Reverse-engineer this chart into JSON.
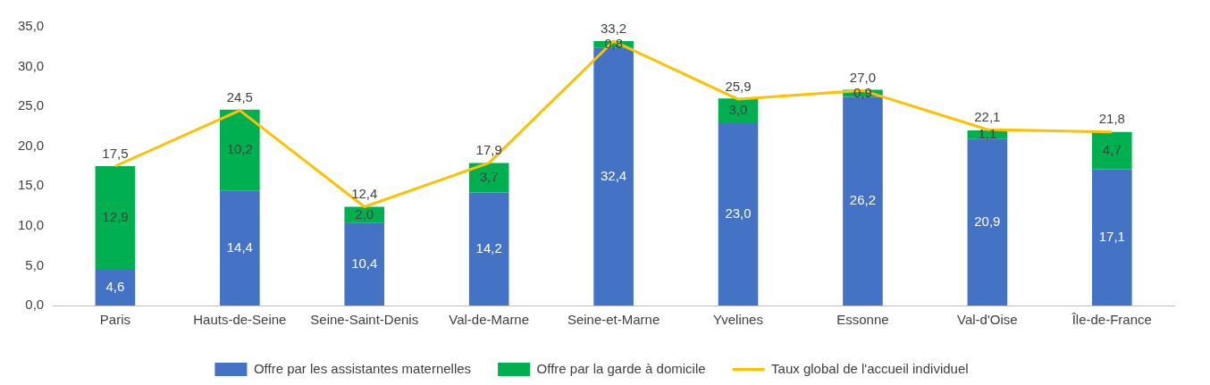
{
  "chart_data": {
    "type": "bar",
    "stacked": true,
    "categories": [
      "Paris",
      "Hauts-de-Seine",
      "Seine-Saint-Denis",
      "Val-de-Marne",
      "Seine-et-Marne",
      "Yvelines",
      "Essonne",
      "Val-d'Oise",
      "Île-de-France"
    ],
    "series": [
      {
        "name": "Offre par les assistantes maternelles",
        "color": "#4472c4",
        "values": [
          4.6,
          14.4,
          10.4,
          14.2,
          32.4,
          23.0,
          26.2,
          20.9,
          17.1
        ],
        "value_labels": [
          "4,6",
          "14,4",
          "10,4",
          "14,2",
          "32,4",
          "23,0",
          "26,2",
          "20,9",
          "17,1"
        ]
      },
      {
        "name": "Offre par la garde à domicile",
        "color": "#00b050",
        "values": [
          12.9,
          10.2,
          2.0,
          3.7,
          0.8,
          3.0,
          0.9,
          1.1,
          4.7
        ],
        "value_labels": [
          "12,9",
          "10,2",
          "2,0",
          "3,7",
          "0,8",
          "3,0",
          "0,9",
          "1,1",
          "4,7"
        ]
      },
      {
        "name": "Taux global de l'accueil individuel",
        "type": "line",
        "color": "#ffc000",
        "marker": "none",
        "values": [
          17.5,
          24.5,
          12.4,
          17.9,
          33.2,
          25.9,
          27.0,
          22.1,
          21.8
        ],
        "value_labels": [
          "17,5",
          "24,5",
          "12,4",
          "17,9",
          "33,2",
          "25,9",
          "27,0",
          "22,1",
          "21,8"
        ]
      }
    ],
    "ylim": [
      0,
      35
    ],
    "yticks": [
      {
        "value": 0,
        "label": "0,0"
      },
      {
        "value": 5,
        "label": "5,0"
      },
      {
        "value": 10,
        "label": "10,0"
      },
      {
        "value": 15,
        "label": "15,0"
      },
      {
        "value": 20,
        "label": "20,0"
      },
      {
        "value": 25,
        "label": "25,0"
      },
      {
        "value": 30,
        "label": "30,0"
      },
      {
        "value": 35,
        "label": "35,0"
      }
    ],
    "grid": false,
    "legend": "bottom"
  }
}
